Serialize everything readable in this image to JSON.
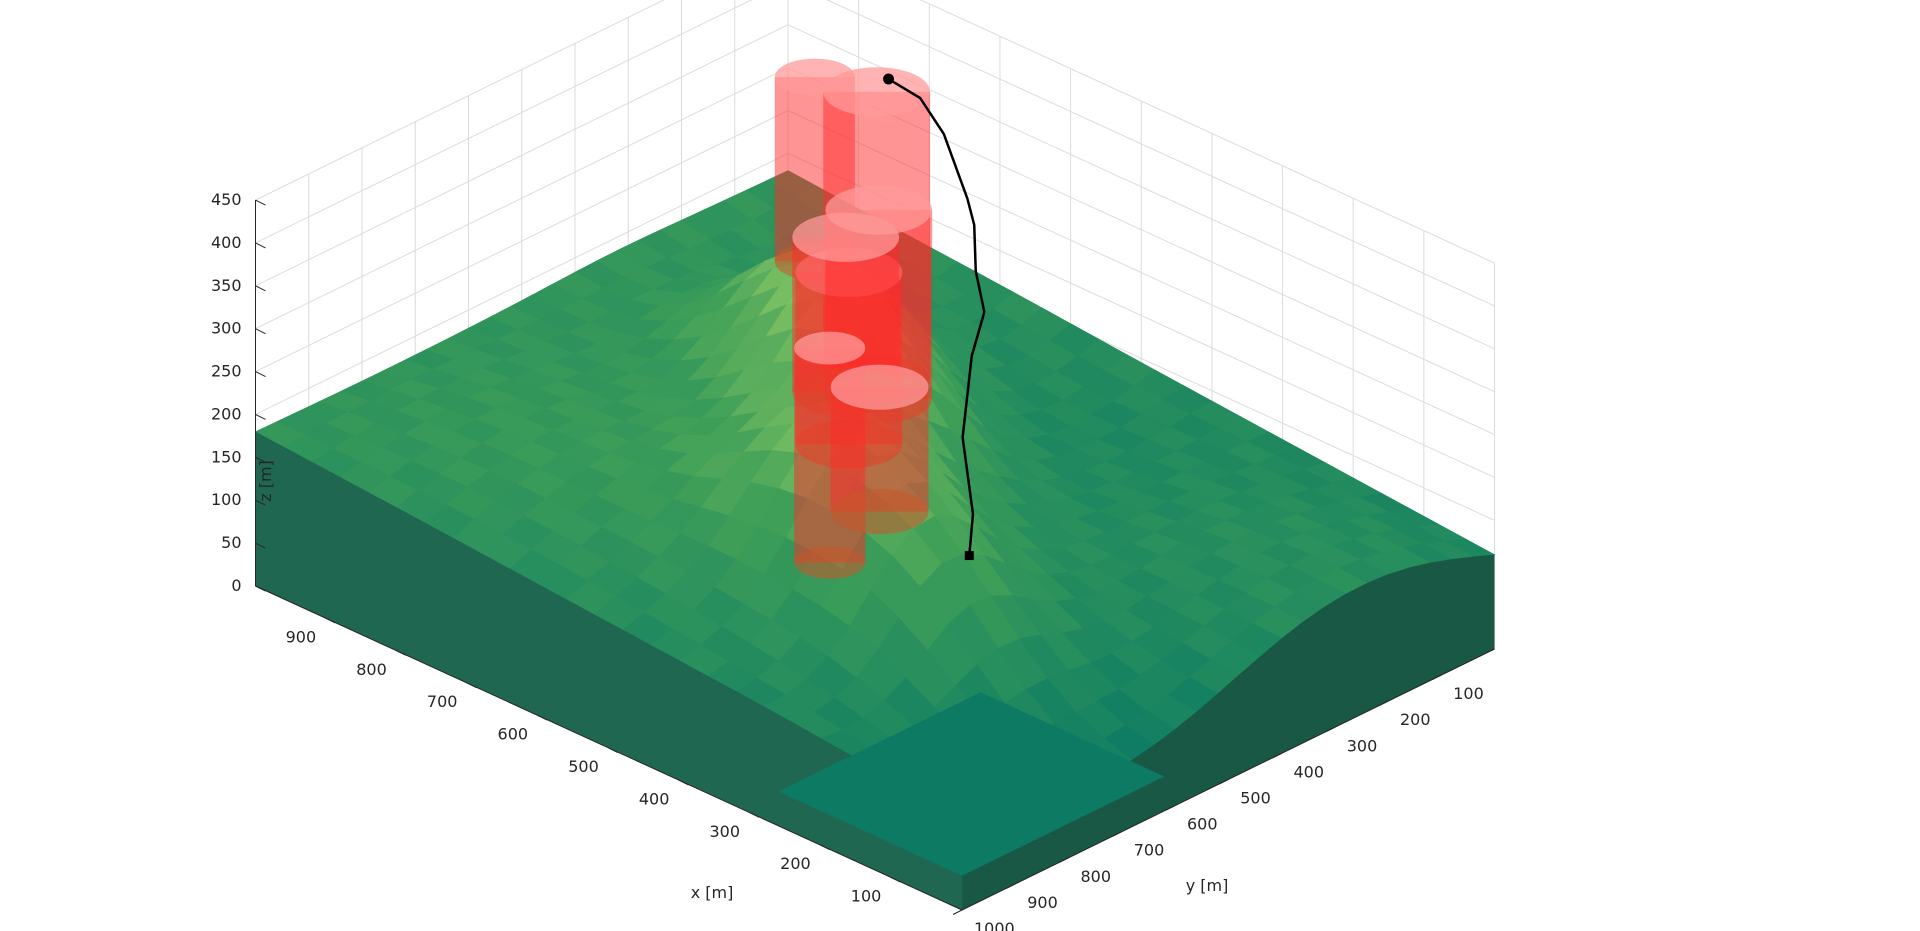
{
  "chart_data": {
    "type": "surface3d",
    "title": "",
    "xlabel": "x [m]",
    "ylabel": "y [m]",
    "zlabel": "z [m]",
    "xlim": [
      0,
      1000
    ],
    "ylim": [
      0,
      1000
    ],
    "zlim": [
      0,
      450
    ],
    "x_ticks": [
      "900",
      "800",
      "700",
      "600",
      "500",
      "400",
      "300",
      "200",
      "100"
    ],
    "y_ticks": [
      "100",
      "200",
      "300",
      "400",
      "500",
      "600",
      "700",
      "800",
      "900",
      "1000"
    ],
    "z_ticks": [
      "0",
      "50",
      "100",
      "150",
      "200",
      "250",
      "300",
      "350",
      "400",
      "450"
    ],
    "grid": true,
    "colors": {
      "terrain_low": "#0b7a64",
      "terrain_mid": "#3f9f58",
      "terrain_high": "#a9d86a",
      "cliff": "#0e4f3c",
      "obstacle": "#ff2a2a",
      "path": "#000000",
      "grid": "#dcdcdc",
      "axis": "#262626"
    },
    "path": {
      "start": [
        820,
        50,
        370
      ],
      "end": [
        50,
        920,
        370
      ],
      "waypoints": [
        [
          820,
          50,
          370
        ],
        [
          730,
          110,
          400
        ],
        [
          640,
          185,
          415
        ],
        [
          520,
          300,
          420
        ],
        [
          450,
          380,
          440
        ],
        [
          380,
          470,
          440
        ],
        [
          300,
          560,
          450
        ],
        [
          250,
          650,
          445
        ],
        [
          180,
          760,
          410
        ],
        [
          90,
          860,
          385
        ],
        [
          50,
          920,
          370
        ]
      ]
    },
    "obstacles": [
      {
        "x": 800,
        "y": 215,
        "r": 45,
        "z0": 215,
        "z1": 430
      },
      {
        "x": 720,
        "y": 205,
        "r": 60,
        "z0": 105,
        "z1": 440
      },
      {
        "x": 650,
        "y": 350,
        "r": 60,
        "z0": 100,
        "z1": 300
      },
      {
        "x": 555,
        "y": 420,
        "r": 60,
        "z0": 210,
        "z1": 430
      },
      {
        "x": 500,
        "y": 555,
        "r": 60,
        "z0": 280,
        "z1": 460
      },
      {
        "x": 500,
        "y": 585,
        "r": 40,
        "z0": 90,
        "z1": 340
      },
      {
        "x": 290,
        "y": 770,
        "r": 55,
        "z0": 285,
        "z1": 430
      }
    ]
  }
}
